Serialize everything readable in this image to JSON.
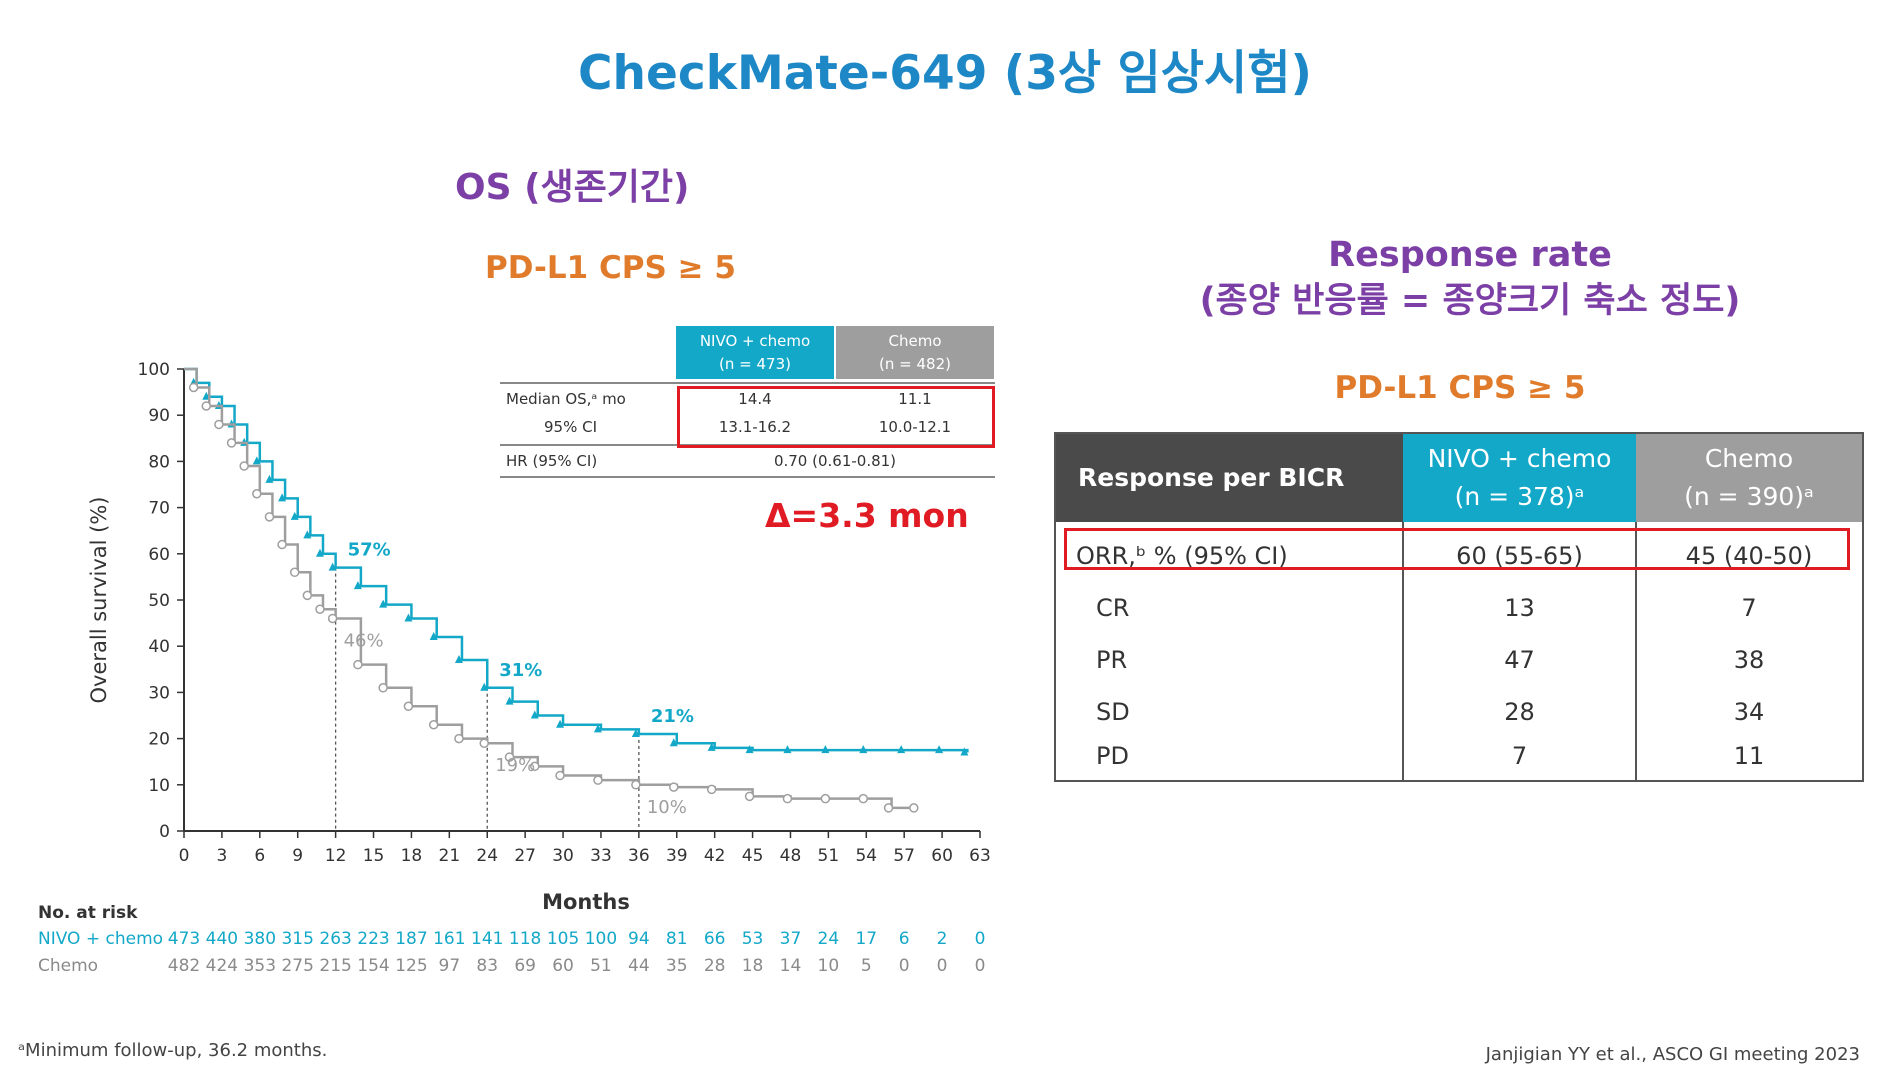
{
  "title": "CheckMate-649 (3상 임상시험)",
  "os_panel": {
    "title": "OS (생존기간)",
    "subgroup": "PD-L1 CPS ≥ 5",
    "table": {
      "col_nivo": [
        "NIVO + chemo",
        "(n = 473)"
      ],
      "col_chemo": [
        "Chemo",
        "(n = 482)"
      ],
      "rows": [
        {
          "label": "Median OS,ᵃ mo",
          "nivo": "14.4",
          "chemo": "11.1"
        },
        {
          "label": "95% CI",
          "nivo": "13.1-16.2",
          "chemo": "10.0-12.1"
        },
        {
          "label": "HR (95% CI)",
          "span": "0.70 (0.61-0.81)"
        }
      ]
    },
    "delta": "Δ=3.3 mon",
    "risk_table": {
      "heading": "No. at risk",
      "nivo_label": "NIVO + chemo",
      "chemo_label": "Chemo",
      "nivo": [
        "473",
        "440",
        "380",
        "315",
        "263",
        "223",
        "187",
        "161",
        "141",
        "118",
        "105",
        "100",
        "94",
        "81",
        "66",
        "53",
        "37",
        "24",
        "17",
        "6",
        "2",
        "0"
      ],
      "chemo": [
        "482",
        "424",
        "353",
        "275",
        "215",
        "154",
        "125",
        "97",
        "83",
        "69",
        "60",
        "51",
        "44",
        "35",
        "28",
        "18",
        "14",
        "10",
        "5",
        "0",
        "0",
        "0"
      ]
    }
  },
  "chart_data": {
    "type": "line",
    "xlabel": "Months",
    "ylabel": "Overall survival (%)",
    "xlim": [
      0,
      63
    ],
    "ylim": [
      0,
      100
    ],
    "xticks": [
      0,
      3,
      6,
      9,
      12,
      15,
      18,
      21,
      24,
      27,
      30,
      33,
      36,
      39,
      42,
      45,
      48,
      51,
      54,
      57,
      60,
      63
    ],
    "yticks": [
      0,
      10,
      20,
      30,
      40,
      50,
      60,
      70,
      80,
      90,
      100
    ],
    "series": [
      {
        "name": "NIVO + chemo",
        "color": "#13a8c8",
        "x": [
          0,
          1,
          2,
          3,
          4,
          5,
          6,
          7,
          8,
          9,
          10,
          11,
          12,
          14,
          16,
          18,
          20,
          22,
          24,
          26,
          28,
          30,
          33,
          36,
          39,
          42,
          45,
          48,
          51,
          54,
          57,
          60,
          62
        ],
        "y": [
          100,
          97,
          94,
          92,
          88,
          84,
          80,
          76,
          72,
          68,
          64,
          60,
          57,
          53,
          49,
          46,
          42,
          37,
          31,
          28,
          25,
          23,
          22,
          21,
          19,
          18,
          17.5,
          17.5,
          17.5,
          17.5,
          17.5,
          17.5,
          17
        ]
      },
      {
        "name": "Chemo",
        "color": "#9e9e9e",
        "x": [
          0,
          1,
          2,
          3,
          4,
          5,
          6,
          7,
          8,
          9,
          10,
          11,
          12,
          14,
          16,
          18,
          20,
          22,
          24,
          26,
          28,
          30,
          33,
          36,
          39,
          42,
          45,
          48,
          51,
          54,
          56,
          58
        ],
        "y": [
          100,
          96,
          92,
          88,
          84,
          79,
          73,
          68,
          62,
          56,
          51,
          48,
          46,
          36,
          31,
          27,
          23,
          20,
          19,
          16,
          14,
          12,
          11,
          10,
          9.5,
          9,
          7.5,
          7,
          7,
          7,
          5,
          5
        ]
      }
    ],
    "annotations": [
      {
        "x": 12,
        "y": 57,
        "text": "57%",
        "series": "NIVO + chemo"
      },
      {
        "x": 12,
        "y": 46,
        "text": "46%",
        "series": "Chemo"
      },
      {
        "x": 24,
        "y": 31,
        "text": "31%",
        "series": "NIVO + chemo"
      },
      {
        "x": 24,
        "y": 19,
        "text": "19%",
        "series": "Chemo"
      },
      {
        "x": 36,
        "y": 21,
        "text": "21%",
        "series": "NIVO + chemo"
      },
      {
        "x": 36,
        "y": 10,
        "text": "10%",
        "series": "Chemo"
      }
    ]
  },
  "rr_panel": {
    "title_line1": "Response rate",
    "title_line2": "(종양 반응률 = 종양크기 축소 정도)",
    "subgroup": "PD-L1 CPS ≥ 5",
    "header": {
      "c0": "Response per BICR",
      "c1": [
        "NIVO + chemo",
        "(n = 378)ᵃ"
      ],
      "c2": [
        "Chemo",
        "(n = 390)ᵃ"
      ]
    },
    "rows": [
      {
        "label": "ORR,ᵇ % (95% CI)",
        "nivo": "60 (55-65)",
        "chemo": "45 (40-50)"
      },
      {
        "label": "CR",
        "nivo": "13",
        "chemo": "7"
      },
      {
        "label": "PR",
        "nivo": "47",
        "chemo": "38"
      },
      {
        "label": "SD",
        "nivo": "28",
        "chemo": "34"
      },
      {
        "label": "PD",
        "nivo": "7",
        "chemo": "11"
      }
    ]
  },
  "footnote": "ᵃMinimum follow-up, 36.2 months.",
  "citation": "Janjigian YY et al., ASCO GI meeting 2023"
}
